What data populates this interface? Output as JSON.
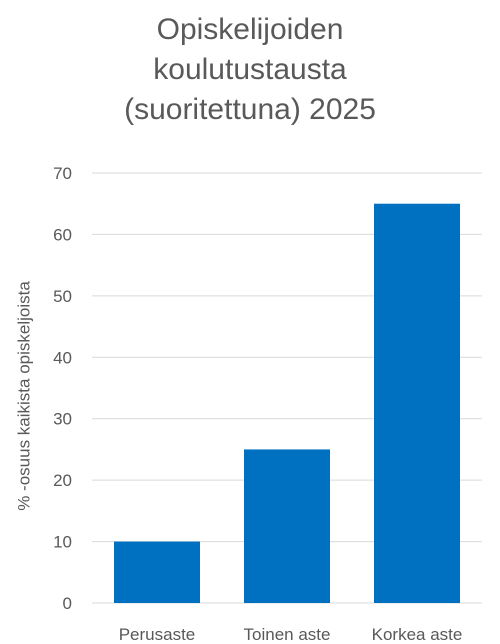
{
  "chart_data": {
    "type": "bar",
    "title_lines": [
      "Opiskelijoiden",
      "koulutustausta",
      "(suoritettuna) 2025"
    ],
    "categories": [
      "Perusaste",
      "Toinen aste",
      "Korkea aste"
    ],
    "values": [
      10,
      25,
      65
    ],
    "ylabel": "% -osuus kaikista opiskeljoista",
    "xlabel": "",
    "ylim": [
      0,
      70
    ],
    "yticks": [
      0,
      10,
      20,
      30,
      40,
      50,
      60,
      70
    ],
    "grid": true,
    "legend": "none",
    "bar_color": "#0070C0",
    "grid_color": "#D9D9D9",
    "text_color": "#595959"
  }
}
